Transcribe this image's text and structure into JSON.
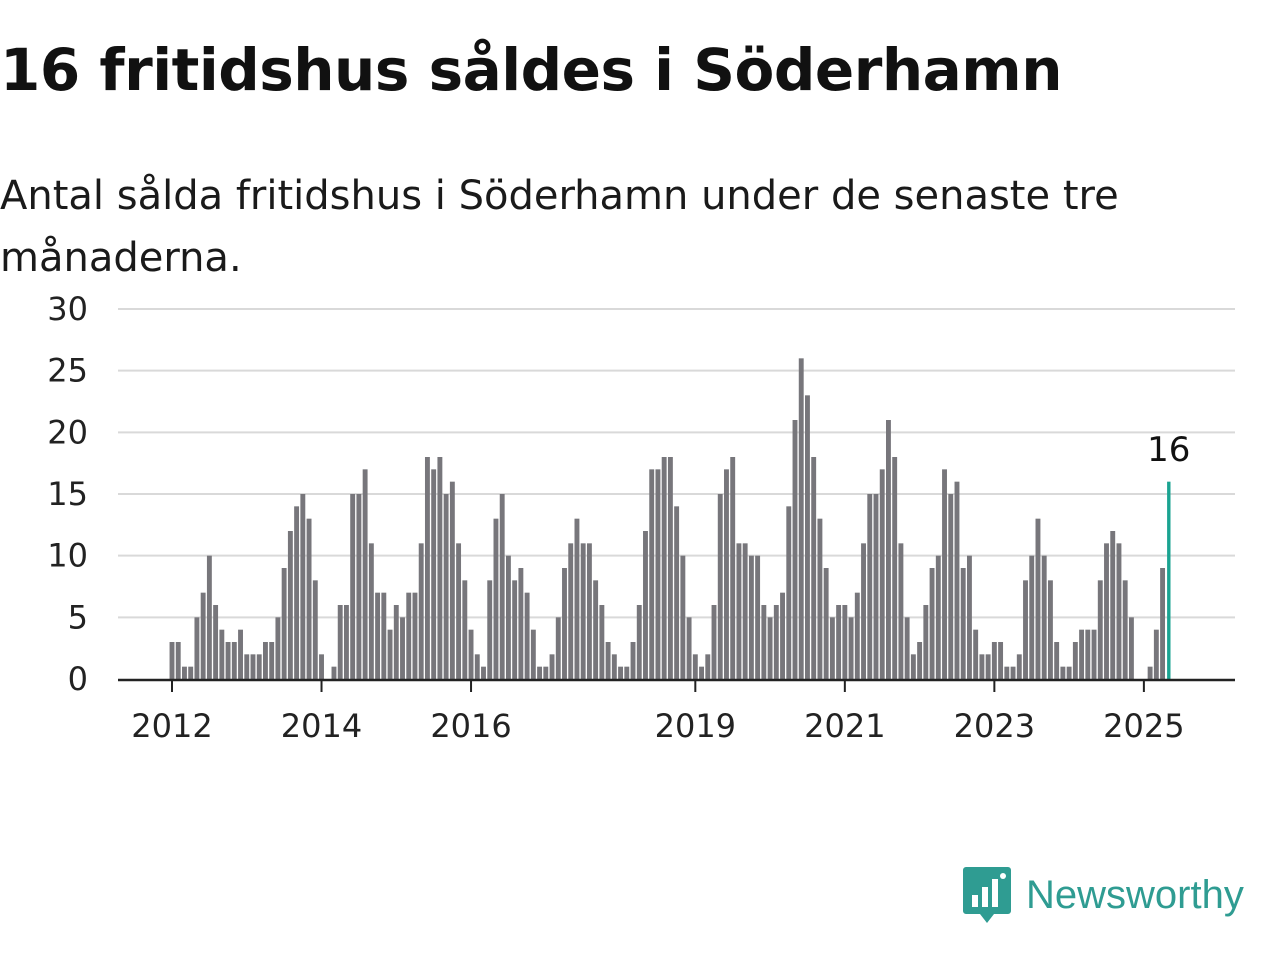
{
  "header": {
    "title": "16 fritidshus såldes i Söderhamn",
    "subtitle": "Antal sålda fritidshus i Söderhamn under de senaste tre månaderna."
  },
  "brand": {
    "name": "Newsworthy",
    "icon": "newsworthy-logo-icon",
    "color": "#2f9c92"
  },
  "colors": {
    "bar": "#77767b",
    "highlight": "#1aa391",
    "grid": "#d9d9d9",
    "axis": "#222222"
  },
  "chart_data": {
    "type": "bar",
    "title": "16 fritidshus såldes i Söderhamn",
    "subtitle": "Antal sålda fritidshus i Söderhamn under de senaste tre månaderna.",
    "ylim": [
      0,
      30
    ],
    "yticks": [
      0,
      5,
      10,
      15,
      20,
      25,
      30
    ],
    "grid": true,
    "x_axis": "month",
    "start": "2012-01",
    "xticks": [
      "2012",
      "2014",
      "2016",
      "2019",
      "2021",
      "2023",
      "2025"
    ],
    "values": [
      3,
      3,
      1,
      1,
      5,
      7,
      10,
      6,
      4,
      3,
      3,
      4,
      2,
      2,
      2,
      3,
      3,
      5,
      9,
      12,
      14,
      15,
      13,
      8,
      2,
      0,
      1,
      6,
      6,
      15,
      15,
      17,
      11,
      7,
      7,
      4,
      6,
      5,
      7,
      7,
      11,
      18,
      17,
      18,
      15,
      16,
      11,
      8,
      4,
      2,
      1,
      8,
      13,
      15,
      10,
      8,
      9,
      7,
      4,
      1,
      1,
      2,
      5,
      9,
      11,
      13,
      11,
      11,
      8,
      6,
      3,
      2,
      1,
      1,
      3,
      6,
      12,
      17,
      17,
      18,
      18,
      14,
      10,
      5,
      2,
      1,
      2,
      6,
      15,
      17,
      18,
      11,
      11,
      10,
      10,
      6,
      5,
      6,
      7,
      14,
      21,
      26,
      23,
      18,
      13,
      9,
      5,
      6,
      6,
      5,
      7,
      11,
      15,
      15,
      17,
      21,
      18,
      11,
      5,
      2,
      3,
      6,
      9,
      10,
      17,
      15,
      16,
      9,
      10,
      4,
      2,
      2,
      3,
      3,
      1,
      1,
      2,
      8,
      10,
      13,
      10,
      8,
      3,
      1,
      1,
      3,
      4,
      4,
      4,
      8,
      11,
      12,
      11,
      8,
      5,
      0,
      0,
      1,
      4,
      9,
      16
    ],
    "highlight": {
      "label": "16",
      "value": 16
    }
  }
}
